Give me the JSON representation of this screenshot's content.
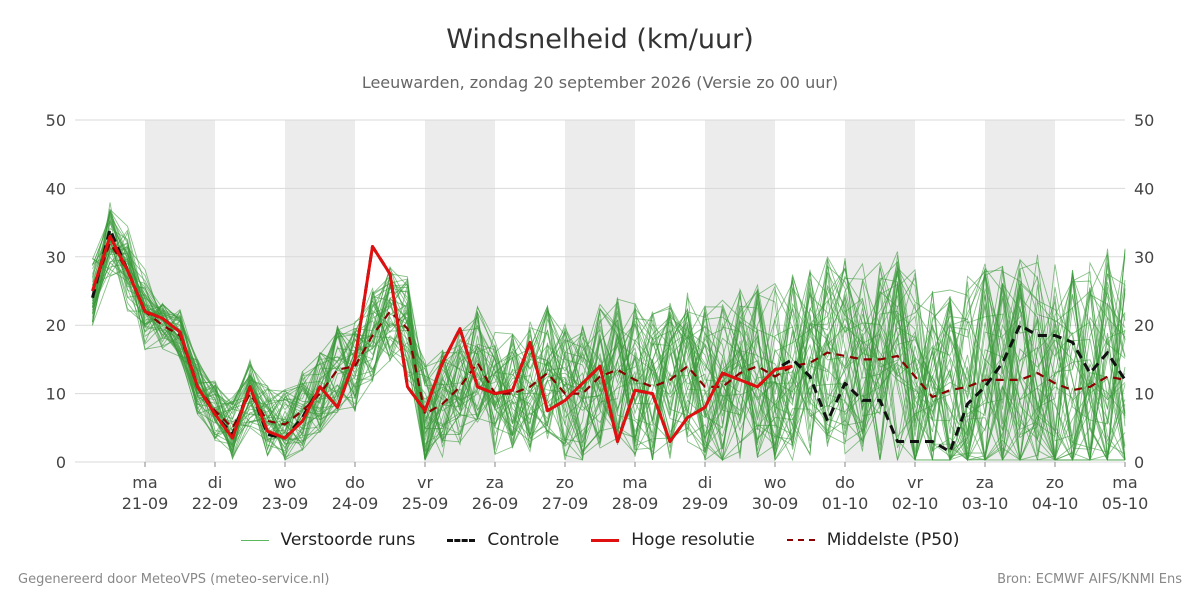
{
  "header": {
    "title": "Windsnelheid (km/uur)",
    "subtitle": "Leeuwarden, zondag 20 september 2026 (Versie zo 00 uur)"
  },
  "footer": {
    "left": "Gegenereerd door MeteoVPS (meteo-service.nl)",
    "right": "Bron: ECMWF AIFS/KNMI Ens"
  },
  "legend": [
    {
      "label": "Verstoorde runs",
      "color": "#3a9a3a",
      "style": "thin"
    },
    {
      "label": "Controle",
      "color": "#111111",
      "style": "dashed"
    },
    {
      "label": "Hoge resolutie",
      "color": "#e01010",
      "style": "solid"
    },
    {
      "label": "Middelste (P50)",
      "color": "#8b0000",
      "style": "dashed"
    }
  ],
  "chart_data": {
    "type": "line",
    "title": "Windsnelheid (km/uur)",
    "ylim": [
      0,
      50
    ],
    "yticks": [
      0,
      10,
      20,
      30,
      40,
      50
    ],
    "grid": true,
    "legend_position": "bottom",
    "xlim_days": [
      -1,
      14
    ],
    "x_ticks": [
      {
        "day": "ma",
        "date": "21-09"
      },
      {
        "day": "di",
        "date": "22-09"
      },
      {
        "day": "wo",
        "date": "23-09"
      },
      {
        "day": "do",
        "date": "24-09"
      },
      {
        "day": "vr",
        "date": "25-09"
      },
      {
        "day": "za",
        "date": "26-09"
      },
      {
        "day": "zo",
        "date": "27-09"
      },
      {
        "day": "ma",
        "date": "28-09"
      },
      {
        "day": "di",
        "date": "29-09"
      },
      {
        "day": "wo",
        "date": "30-09"
      },
      {
        "day": "do",
        "date": "01-10"
      },
      {
        "day": "vr",
        "date": "02-10"
      },
      {
        "day": "za",
        "date": "03-10"
      },
      {
        "day": "zo",
        "date": "04-10"
      },
      {
        "day": "ma",
        "date": "05-10"
      }
    ],
    "weekend_shading": true,
    "series": [
      {
        "name": "Controle",
        "color": "#111111",
        "style": "dashed",
        "x": [
          -0.75,
          -0.5,
          -0.25,
          0,
          0.25,
          0.5,
          0.75,
          1,
          1.25,
          1.5,
          1.75,
          2,
          2.25,
          2.5,
          2.75,
          3,
          3.25,
          3.5,
          3.75,
          4,
          4.25,
          4.5,
          4.75,
          5,
          5.25,
          5.5,
          5.75,
          6,
          6.25,
          6.5,
          6.75,
          7,
          7.25,
          7.5,
          7.75,
          8,
          8.25,
          8.5,
          8.75,
          9,
          9.25,
          9.5,
          9.75,
          10,
          10.25,
          10.5,
          10.75,
          11,
          11.25,
          11.5,
          11.75,
          12,
          12.25,
          12.5,
          12.75,
          13,
          13.25,
          13.5,
          13.75,
          14
        ],
        "values": [
          24,
          34,
          28,
          22,
          21,
          19,
          11,
          7,
          4,
          11,
          4,
          3.5,
          6.5,
          11,
          8,
          15,
          31.5,
          27.5,
          11,
          7.5,
          14.5,
          19.5,
          11,
          10,
          10.5,
          17.5,
          7.5,
          9,
          11.5,
          14,
          3,
          10.5,
          10,
          3,
          6.5,
          8,
          13,
          12,
          11,
          13.5,
          15,
          12.5,
          6,
          11.5,
          9,
          9,
          3,
          3,
          3,
          1.5,
          8.5,
          11,
          14.5,
          20,
          18.5,
          18.5,
          17.5,
          13,
          16,
          12
        ]
      },
      {
        "name": "Hoge resolutie",
        "color": "#e01010",
        "style": "solid",
        "x": [
          -0.75,
          -0.5,
          -0.25,
          0,
          0.25,
          0.5,
          0.75,
          1,
          1.25,
          1.5,
          1.75,
          2,
          2.25,
          2.5,
          2.75,
          3,
          3.25,
          3.5,
          3.75,
          4,
          4.25,
          4.5,
          4.75,
          5,
          5.25,
          5.5,
          5.75,
          6,
          6.25,
          6.5,
          6.75,
          7,
          7.25,
          7.5,
          7.75,
          8,
          8.25,
          8.5,
          8.75,
          9,
          9.25
        ],
        "values": [
          25,
          33,
          28,
          22,
          21,
          19,
          11,
          7,
          3.5,
          11,
          4.5,
          3.5,
          6,
          11,
          8,
          15,
          31.5,
          27.5,
          11,
          7.5,
          14.5,
          19.5,
          11,
          10,
          10.5,
          17.5,
          7.5,
          9,
          11.5,
          14,
          3,
          10.5,
          10,
          3,
          6.5,
          8,
          13,
          12,
          11,
          13.5,
          14
        ]
      },
      {
        "name": "Middelste (P50)",
        "color": "#8b0000",
        "style": "dashed",
        "x": [
          -0.75,
          -0.5,
          -0.25,
          0,
          0.25,
          0.5,
          0.75,
          1,
          1.25,
          1.5,
          1.75,
          2,
          2.25,
          2.5,
          2.75,
          3,
          3.25,
          3.5,
          3.75,
          4,
          4.25,
          4.5,
          4.75,
          5,
          5.25,
          5.5,
          5.75,
          6,
          6.25,
          6.5,
          6.75,
          7,
          7.25,
          7.5,
          7.75,
          8,
          8.25,
          8.5,
          8.75,
          9,
          9.25,
          9.5,
          9.75,
          10,
          10.25,
          10.5,
          10.75,
          11,
          11.25,
          11.5,
          11.75,
          12,
          12.25,
          12.5,
          12.75,
          13,
          13.25,
          13.5,
          13.75,
          14
        ],
        "values": [
          25,
          32,
          28,
          22,
          20,
          18.5,
          11,
          7.5,
          5,
          10,
          6,
          5.5,
          7.5,
          10,
          13.5,
          14,
          18.5,
          22,
          19.5,
          7,
          8.5,
          11,
          14.5,
          10,
          10,
          11,
          13,
          10,
          10,
          12.5,
          13.5,
          12,
          11,
          12,
          14,
          11,
          11,
          13,
          14,
          12.5,
          14,
          14.5,
          16,
          15.5,
          15,
          15,
          15.5,
          12.5,
          9.5,
          10.5,
          11,
          12,
          12,
          12,
          13,
          11.5,
          10.5,
          11,
          12.5,
          12
        ]
      }
    ],
    "ensemble": {
      "name": "Verstoorde runs",
      "color": "#3a9a3a",
      "member_count": 50
    }
  }
}
